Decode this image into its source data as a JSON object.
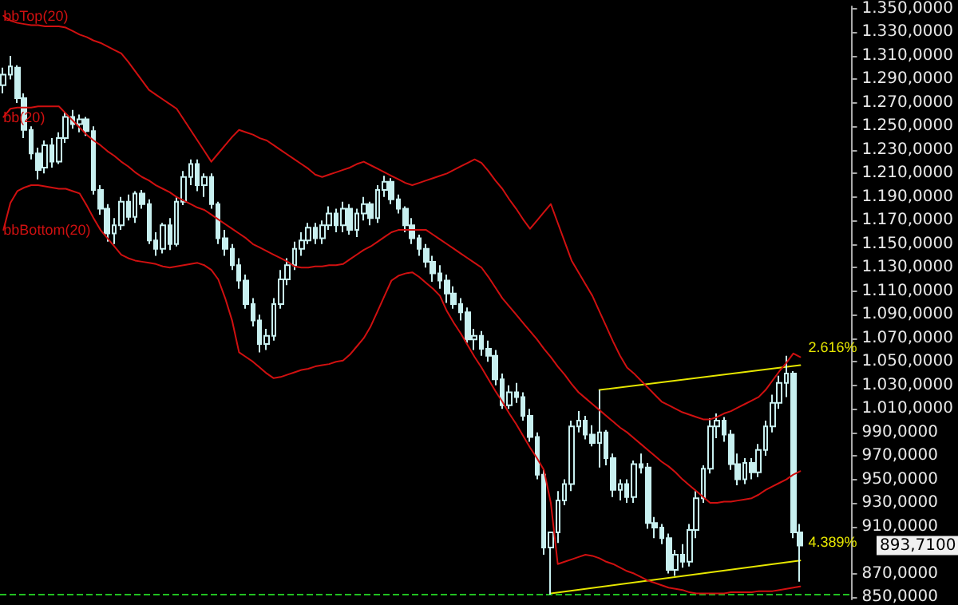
{
  "chart_data": {
    "type": "candlestick",
    "color": "#c8f0f0",
    "categories": [
      null,
      null,
      null,
      null,
      null,
      null,
      null,
      null,
      null,
      null,
      null,
      null,
      null,
      null,
      null,
      null,
      null,
      null,
      null,
      null,
      null,
      null,
      null,
      null,
      null,
      null,
      null,
      null,
      null,
      null,
      null,
      null,
      null,
      null,
      null,
      null,
      null,
      null,
      null,
      null,
      null,
      null,
      null,
      null,
      null,
      null,
      null,
      null,
      null,
      null,
      null,
      null,
      null,
      null,
      null,
      null,
      null,
      null,
      null,
      null,
      null,
      null,
      null,
      null,
      null,
      null,
      null,
      null,
      null,
      null,
      null,
      null,
      null,
      null,
      null,
      null,
      null,
      null,
      null,
      null,
      null,
      null,
      null,
      null,
      null,
      null,
      null,
      null,
      null,
      null,
      null,
      null,
      null,
      null,
      null,
      null,
      null,
      null,
      null,
      null,
      null,
      null,
      null,
      null,
      null,
      null,
      null,
      null,
      null,
      null,
      null,
      null,
      null,
      null,
      null,
      null
    ],
    "ohlc": [
      [
        1285,
        1300,
        1278,
        1294
      ],
      [
        1294,
        1310,
        1290,
        1301
      ],
      [
        1300,
        1302,
        1270,
        1274
      ],
      [
        1274,
        1278,
        1240,
        1247
      ],
      [
        1247,
        1250,
        1222,
        1227
      ],
      [
        1227,
        1232,
        1205,
        1213
      ],
      [
        1215,
        1238,
        1210,
        1234
      ],
      [
        1234,
        1240,
        1215,
        1220
      ],
      [
        1220,
        1245,
        1218,
        1240
      ],
      [
        1240,
        1262,
        1236,
        1258
      ],
      [
        1258,
        1264,
        1248,
        1252
      ],
      [
        1252,
        1260,
        1245,
        1256
      ],
      [
        1256,
        1258,
        1242,
        1246
      ],
      [
        1246,
        1250,
        1192,
        1196
      ],
      [
        1196,
        1200,
        1175,
        1180
      ],
      [
        1180,
        1184,
        1152,
        1159
      ],
      [
        1159,
        1172,
        1150,
        1166
      ],
      [
        1166,
        1190,
        1162,
        1186
      ],
      [
        1186,
        1192,
        1170,
        1173
      ],
      [
        1173,
        1195,
        1168,
        1193
      ],
      [
        1193,
        1196,
        1180,
        1184
      ],
      [
        1184,
        1188,
        1150,
        1153
      ],
      [
        1153,
        1160,
        1140,
        1146
      ],
      [
        1146,
        1168,
        1142,
        1166
      ],
      [
        1166,
        1172,
        1145,
        1150
      ],
      [
        1150,
        1190,
        1148,
        1186
      ],
      [
        1186,
        1212,
        1183,
        1207
      ],
      [
        1207,
        1222,
        1200,
        1218
      ],
      [
        1218,
        1222,
        1195,
        1200
      ],
      [
        1200,
        1210,
        1190,
        1207
      ],
      [
        1207,
        1210,
        1180,
        1184
      ],
      [
        1184,
        1186,
        1150,
        1155
      ],
      [
        1155,
        1162,
        1140,
        1146
      ],
      [
        1146,
        1150,
        1128,
        1132
      ],
      [
        1132,
        1138,
        1112,
        1119
      ],
      [
        1119,
        1124,
        1095,
        1099
      ],
      [
        1099,
        1104,
        1080,
        1085
      ],
      [
        1085,
        1090,
        1058,
        1065
      ],
      [
        1065,
        1078,
        1060,
        1072
      ],
      [
        1072,
        1104,
        1068,
        1099
      ],
      [
        1099,
        1128,
        1095,
        1120
      ],
      [
        1120,
        1138,
        1115,
        1132
      ],
      [
        1132,
        1152,
        1128,
        1146
      ],
      [
        1146,
        1160,
        1140,
        1153
      ],
      [
        1153,
        1168,
        1150,
        1164
      ],
      [
        1164,
        1168,
        1150,
        1155
      ],
      [
        1155,
        1170,
        1150,
        1166
      ],
      [
        1166,
        1182,
        1162,
        1176
      ],
      [
        1176,
        1180,
        1160,
        1166
      ],
      [
        1166,
        1186,
        1160,
        1180
      ],
      [
        1180,
        1184,
        1158,
        1162
      ],
      [
        1162,
        1180,
        1156,
        1176
      ],
      [
        1176,
        1190,
        1170,
        1184
      ],
      [
        1184,
        1186,
        1166,
        1172
      ],
      [
        1172,
        1200,
        1168,
        1196
      ],
      [
        1196,
        1208,
        1190,
        1203
      ],
      [
        1203,
        1206,
        1184,
        1188
      ],
      [
        1188,
        1192,
        1176,
        1180
      ],
      [
        1180,
        1182,
        1160,
        1166
      ],
      [
        1166,
        1172,
        1150,
        1155
      ],
      [
        1155,
        1158,
        1140,
        1146
      ],
      [
        1146,
        1150,
        1130,
        1135
      ],
      [
        1135,
        1140,
        1118,
        1125
      ],
      [
        1125,
        1132,
        1112,
        1119
      ],
      [
        1119,
        1124,
        1100,
        1108
      ],
      [
        1108,
        1114,
        1095,
        1099
      ],
      [
        1099,
        1104,
        1085,
        1092
      ],
      [
        1092,
        1096,
        1066,
        1069
      ],
      [
        1069,
        1078,
        1060,
        1072
      ],
      [
        1072,
        1076,
        1055,
        1061
      ],
      [
        1061,
        1068,
        1050,
        1055
      ],
      [
        1055,
        1060,
        1030,
        1035
      ],
      [
        1035,
        1040,
        1010,
        1013
      ],
      [
        1013,
        1030,
        1010,
        1024
      ],
      [
        1024,
        1032,
        1015,
        1020
      ],
      [
        1020,
        1024,
        1000,
        1004
      ],
      [
        1004,
        1010,
        982,
        986
      ],
      [
        986,
        990,
        950,
        954
      ],
      [
        954,
        958,
        886,
        892
      ],
      [
        892,
        905,
        852,
        905
      ],
      [
        905,
        940,
        896,
        932
      ],
      [
        932,
        950,
        928,
        946
      ],
      [
        946,
        1000,
        940,
        995
      ],
      [
        995,
        1008,
        990,
        1000
      ],
      [
        1000,
        1004,
        984,
        988
      ],
      [
        988,
        996,
        978,
        981
      ],
      [
        981,
        1026,
        960,
        990
      ],
      [
        990,
        992,
        962,
        968
      ],
      [
        968,
        972,
        935,
        941
      ],
      [
        941,
        950,
        932,
        946
      ],
      [
        946,
        950,
        930,
        935
      ],
      [
        935,
        966,
        930,
        963
      ],
      [
        963,
        972,
        955,
        960
      ],
      [
        960,
        964,
        908,
        913
      ],
      [
        913,
        918,
        900,
        909
      ],
      [
        909,
        912,
        895,
        900
      ],
      [
        900,
        904,
        870,
        873
      ],
      [
        873,
        890,
        868,
        886
      ],
      [
        886,
        895,
        875,
        880
      ],
      [
        880,
        912,
        876,
        907
      ],
      [
        907,
        940,
        900,
        934
      ],
      [
        934,
        962,
        930,
        959
      ],
      [
        959,
        1002,
        955,
        995
      ],
      [
        995,
        1006,
        985,
        1000
      ],
      [
        1000,
        1003,
        982,
        988
      ],
      [
        988,
        992,
        958,
        963
      ],
      [
        963,
        972,
        945,
        950
      ],
      [
        950,
        968,
        946,
        964
      ],
      [
        964,
        968,
        950,
        956
      ],
      [
        956,
        980,
        952,
        975
      ],
      [
        975,
        1000,
        970,
        995
      ],
      [
        995,
        1022,
        990,
        1015
      ],
      [
        1015,
        1038,
        1010,
        1032
      ],
      [
        1032,
        1055,
        1020,
        1040
      ],
      [
        1040,
        1042,
        900,
        905
      ],
      [
        905,
        912,
        863,
        893.71
      ]
    ],
    "series": [
      {
        "name": "bbTop(20)",
        "type": "line",
        "color": "#d01010",
        "values": [
          1344,
          1340,
          1338,
          1337,
          1336,
          1336,
          1335,
          1335,
          1335,
          1334,
          1331,
          1328,
          1326,
          1323,
          1321,
          1318,
          1315,
          1312,
          1305,
          1297,
          1289,
          1281,
          1277,
          1273,
          1269,
          1265,
          1256,
          1247,
          1238,
          1229,
          1220,
          1227,
          1234,
          1241,
          1247,
          1245,
          1243,
          1240,
          1238,
          1234,
          1230,
          1226,
          1222,
          1218,
          1214,
          1209,
          1207,
          1209,
          1211,
          1213,
          1215,
          1218,
          1220,
          1217,
          1214,
          1211,
          1208,
          1205,
          1202,
          1200,
          1202,
          1204,
          1206,
          1208,
          1210,
          1213,
          1216,
          1219,
          1222,
          1219,
          1212,
          1204,
          1197,
          1188,
          1180,
          1171,
          1163,
          1170,
          1177,
          1184,
          1168,
          1152,
          1136,
          1126,
          1116,
          1106,
          1093,
          1080,
          1067,
          1055,
          1045,
          1040,
          1034,
          1028,
          1022,
          1016,
          1013,
          1010,
          1007,
          1005,
          1003,
          1001,
          1001,
          1003,
          1006,
          1008,
          1011,
          1014,
          1017,
          1020,
          1026,
          1034,
          1042,
          1049,
          1057,
          1054
        ]
      },
      {
        "name": "bb(20)",
        "type": "line",
        "color": "#d01010",
        "values": [
          1258,
          1265,
          1266,
          1266,
          1266,
          1267,
          1267,
          1267,
          1267,
          1261,
          1255,
          1249,
          1243,
          1238,
          1234,
          1229,
          1225,
          1220,
          1216,
          1211,
          1207,
          1204,
          1200,
          1197,
          1194,
          1190,
          1187,
          1184,
          1181,
          1179,
          1175,
          1171,
          1167,
          1163,
          1159,
          1155,
          1150,
          1147,
          1144,
          1141,
          1138,
          1135,
          1131,
          1130,
          1130,
          1131,
          1131,
          1132,
          1132,
          1133,
          1137,
          1141,
          1145,
          1148,
          1152,
          1156,
          1160,
          1162,
          1162,
          1162,
          1162,
          1162,
          1158,
          1154,
          1150,
          1146,
          1142,
          1138,
          1134,
          1130,
          1122,
          1113,
          1104,
          1097,
          1090,
          1083,
          1076,
          1069,
          1061,
          1054,
          1046,
          1039,
          1031,
          1024,
          1019,
          1014,
          1009,
          1004,
          999,
          994,
          990,
          985,
          980,
          975,
          970,
          965,
          961,
          956,
          950,
          945,
          940,
          935,
          930,
          930,
          931,
          931,
          932,
          933,
          934,
          937,
          941,
          944,
          947,
          950,
          954,
          957
        ]
      },
      {
        "name": "bbBottom(20)",
        "type": "line",
        "color": "#d01010",
        "values": [
          1162,
          1185,
          1195,
          1198,
          1200,
          1200,
          1199,
          1198,
          1197,
          1197,
          1195,
          1193,
          1183,
          1172,
          1162,
          1155,
          1148,
          1141,
          1138,
          1136,
          1135,
          1134,
          1133,
          1131,
          1130,
          1131,
          1132,
          1133,
          1134,
          1132,
          1128,
          1120,
          1104,
          1085,
          1058,
          1054,
          1050,
          1045,
          1040,
          1036,
          1037,
          1039,
          1041,
          1043,
          1044,
          1046,
          1047,
          1048,
          1050,
          1051,
          1056,
          1063,
          1070,
          1080,
          1093,
          1106,
          1119,
          1123,
          1125,
          1126,
          1122,
          1117,
          1112,
          1106,
          1093,
          1083,
          1074,
          1064,
          1054,
          1045,
          1035,
          1025,
          1016,
          1006,
          997,
          987,
          977,
          968,
          958,
          930,
          878,
          880,
          882,
          884,
          886,
          885,
          883,
          880,
          878,
          875,
          872,
          870,
          867,
          864,
          862,
          860,
          858,
          857,
          856,
          854,
          853,
          853,
          853,
          853,
          853,
          854,
          854,
          854,
          854,
          855,
          855,
          855,
          856,
          857,
          858,
          859
        ]
      },
      {
        "type": "line",
        "color": "#e6e600",
        "values": [
          null,
          null,
          null,
          null,
          null,
          null,
          null,
          null,
          null,
          null,
          null,
          null,
          null,
          null,
          null,
          null,
          null,
          null,
          null,
          null,
          null,
          null,
          null,
          null,
          null,
          null,
          null,
          null,
          null,
          null,
          null,
          null,
          null,
          null,
          null,
          null,
          null,
          null,
          null,
          null,
          null,
          null,
          null,
          null,
          null,
          null,
          null,
          null,
          null,
          null,
          null,
          null,
          null,
          null,
          null,
          null,
          null,
          null,
          null,
          null,
          null,
          null,
          null,
          null,
          null,
          null,
          null,
          null,
          null,
          null,
          null,
          null,
          null,
          null,
          null,
          null,
          null,
          null,
          null,
          null,
          null,
          null,
          null,
          null,
          null,
          null,
          1026,
          null,
          null,
          null,
          null,
          null,
          null,
          null,
          null,
          null,
          null,
          null,
          null,
          null,
          null,
          null,
          null,
          null,
          null,
          null,
          null,
          null,
          null,
          null,
          null,
          null,
          null,
          null,
          null,
          1047
        ]
      },
      {
        "type": "line",
        "color": "#e6e600",
        "values": [
          null,
          null,
          null,
          null,
          null,
          null,
          null,
          null,
          null,
          null,
          null,
          null,
          null,
          null,
          null,
          null,
          null,
          null,
          null,
          null,
          null,
          null,
          null,
          null,
          null,
          null,
          null,
          null,
          null,
          null,
          null,
          null,
          null,
          null,
          null,
          null,
          null,
          null,
          null,
          null,
          null,
          null,
          null,
          null,
          null,
          null,
          null,
          null,
          null,
          null,
          null,
          null,
          null,
          null,
          null,
          null,
          null,
          null,
          null,
          null,
          null,
          null,
          null,
          null,
          null,
          null,
          null,
          null,
          null,
          null,
          null,
          null,
          null,
          null,
          null,
          null,
          null,
          null,
          null,
          853,
          null,
          null,
          null,
          null,
          null,
          null,
          null,
          null,
          null,
          null,
          null,
          null,
          null,
          null,
          null,
          null,
          null,
          null,
          null,
          null,
          null,
          null,
          null,
          null,
          null,
          null,
          null,
          null,
          null,
          null,
          null,
          null,
          null,
          null,
          null,
          881
        ]
      }
    ],
    "ylim": [
      848,
      1352
    ],
    "yticks": [
      {
        "value": 850,
        "label": "850,0000"
      },
      {
        "value": 870,
        "label": "870,0000"
      },
      {
        "value": 910,
        "label": "910,0000"
      },
      {
        "value": 930,
        "label": "930,0000"
      },
      {
        "value": 950,
        "label": "950,0000"
      },
      {
        "value": 970,
        "label": "970,0000"
      },
      {
        "value": 990,
        "label": "990,0000"
      },
      {
        "value": 1010,
        "label": "1.010,0000"
      },
      {
        "value": 1030,
        "label": "1.030,0000"
      },
      {
        "value": 1050,
        "label": "1.050,0000"
      },
      {
        "value": 1070,
        "label": "1.070,0000"
      },
      {
        "value": 1090,
        "label": "1.090,0000"
      },
      {
        "value": 1110,
        "label": "1.110,0000"
      },
      {
        "value": 1130,
        "label": "1.130,0000"
      },
      {
        "value": 1150,
        "label": "1.150,0000"
      },
      {
        "value": 1170,
        "label": "1.170,0000"
      },
      {
        "value": 1190,
        "label": "1.190,0000"
      },
      {
        "value": 1210,
        "label": "1.210,0000"
      },
      {
        "value": 1230,
        "label": "1.230,0000"
      },
      {
        "value": 1250,
        "label": "1.250,0000"
      },
      {
        "value": 1270,
        "label": "1.270,0000"
      },
      {
        "value": 1290,
        "label": "1.290,0000"
      },
      {
        "value": 1310,
        "label": "1.310,0000"
      },
      {
        "value": 1330,
        "label": "1.330,0000"
      },
      {
        "value": 1350,
        "label": "1.350,0000"
      }
    ],
    "ref_lines": [
      {
        "axis": "y",
        "value": 853,
        "color": "#20c020",
        "line_style": "dashed"
      }
    ],
    "annotations": [
      "2.616%",
      "4.389%",
      "893,7100"
    ],
    "tick_labels": "y",
    "grid": false,
    "marker": "none"
  }
}
